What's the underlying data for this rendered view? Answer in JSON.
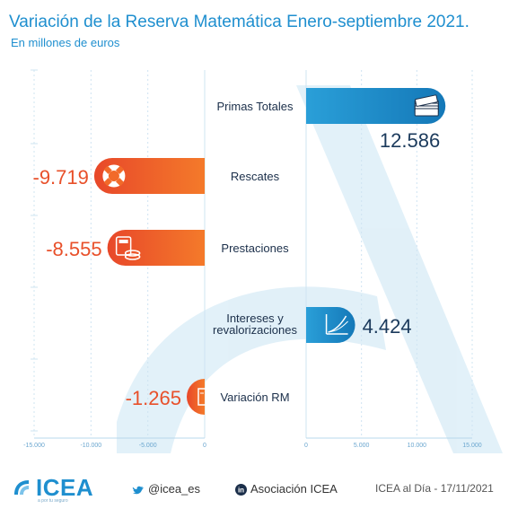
{
  "title": "Variación de la Reserva Matemática Enero-septiembre 2021.",
  "subtitle": "En millones de euros",
  "chart_data": {
    "type": "bar",
    "orientation": "horizontal",
    "categories": [
      "Primas Totales",
      "Rescates",
      "Prestaciones",
      "Intereses y revalorizaciones",
      "Variación RM"
    ],
    "values": [
      12586,
      -9719,
      -8555,
      4424,
      -1265
    ],
    "value_labels": [
      "12.586",
      "-9.719",
      "-8.555",
      "4.424",
      "-1.265"
    ],
    "left_ticks": [
      "-15.000",
      "-10.000",
      "-5.000",
      "0"
    ],
    "right_ticks": [
      "0",
      "5.000",
      "10.000",
      "15.000"
    ],
    "xlim_negative": [
      -15000,
      0
    ],
    "xlim_positive": [
      0,
      15000
    ],
    "grid": true,
    "colors": {
      "positive": "#1f8fcf",
      "negative": "#ee5a24",
      "label_positive": "#1b3a5c",
      "label_negative": "#e8502a"
    },
    "icons": [
      "money-stack-icon",
      "lifebuoy-icon",
      "calculator-coins-icon",
      "growth-chart-icon",
      "ledger-icon"
    ]
  },
  "footer": {
    "logo_text": "ICEA",
    "logo_tagline": "a por tu seguro",
    "twitter": "@icea_es",
    "linkedin": "Asociación ICEA",
    "date_text": "ICEA al Día - 17/11/2021"
  }
}
